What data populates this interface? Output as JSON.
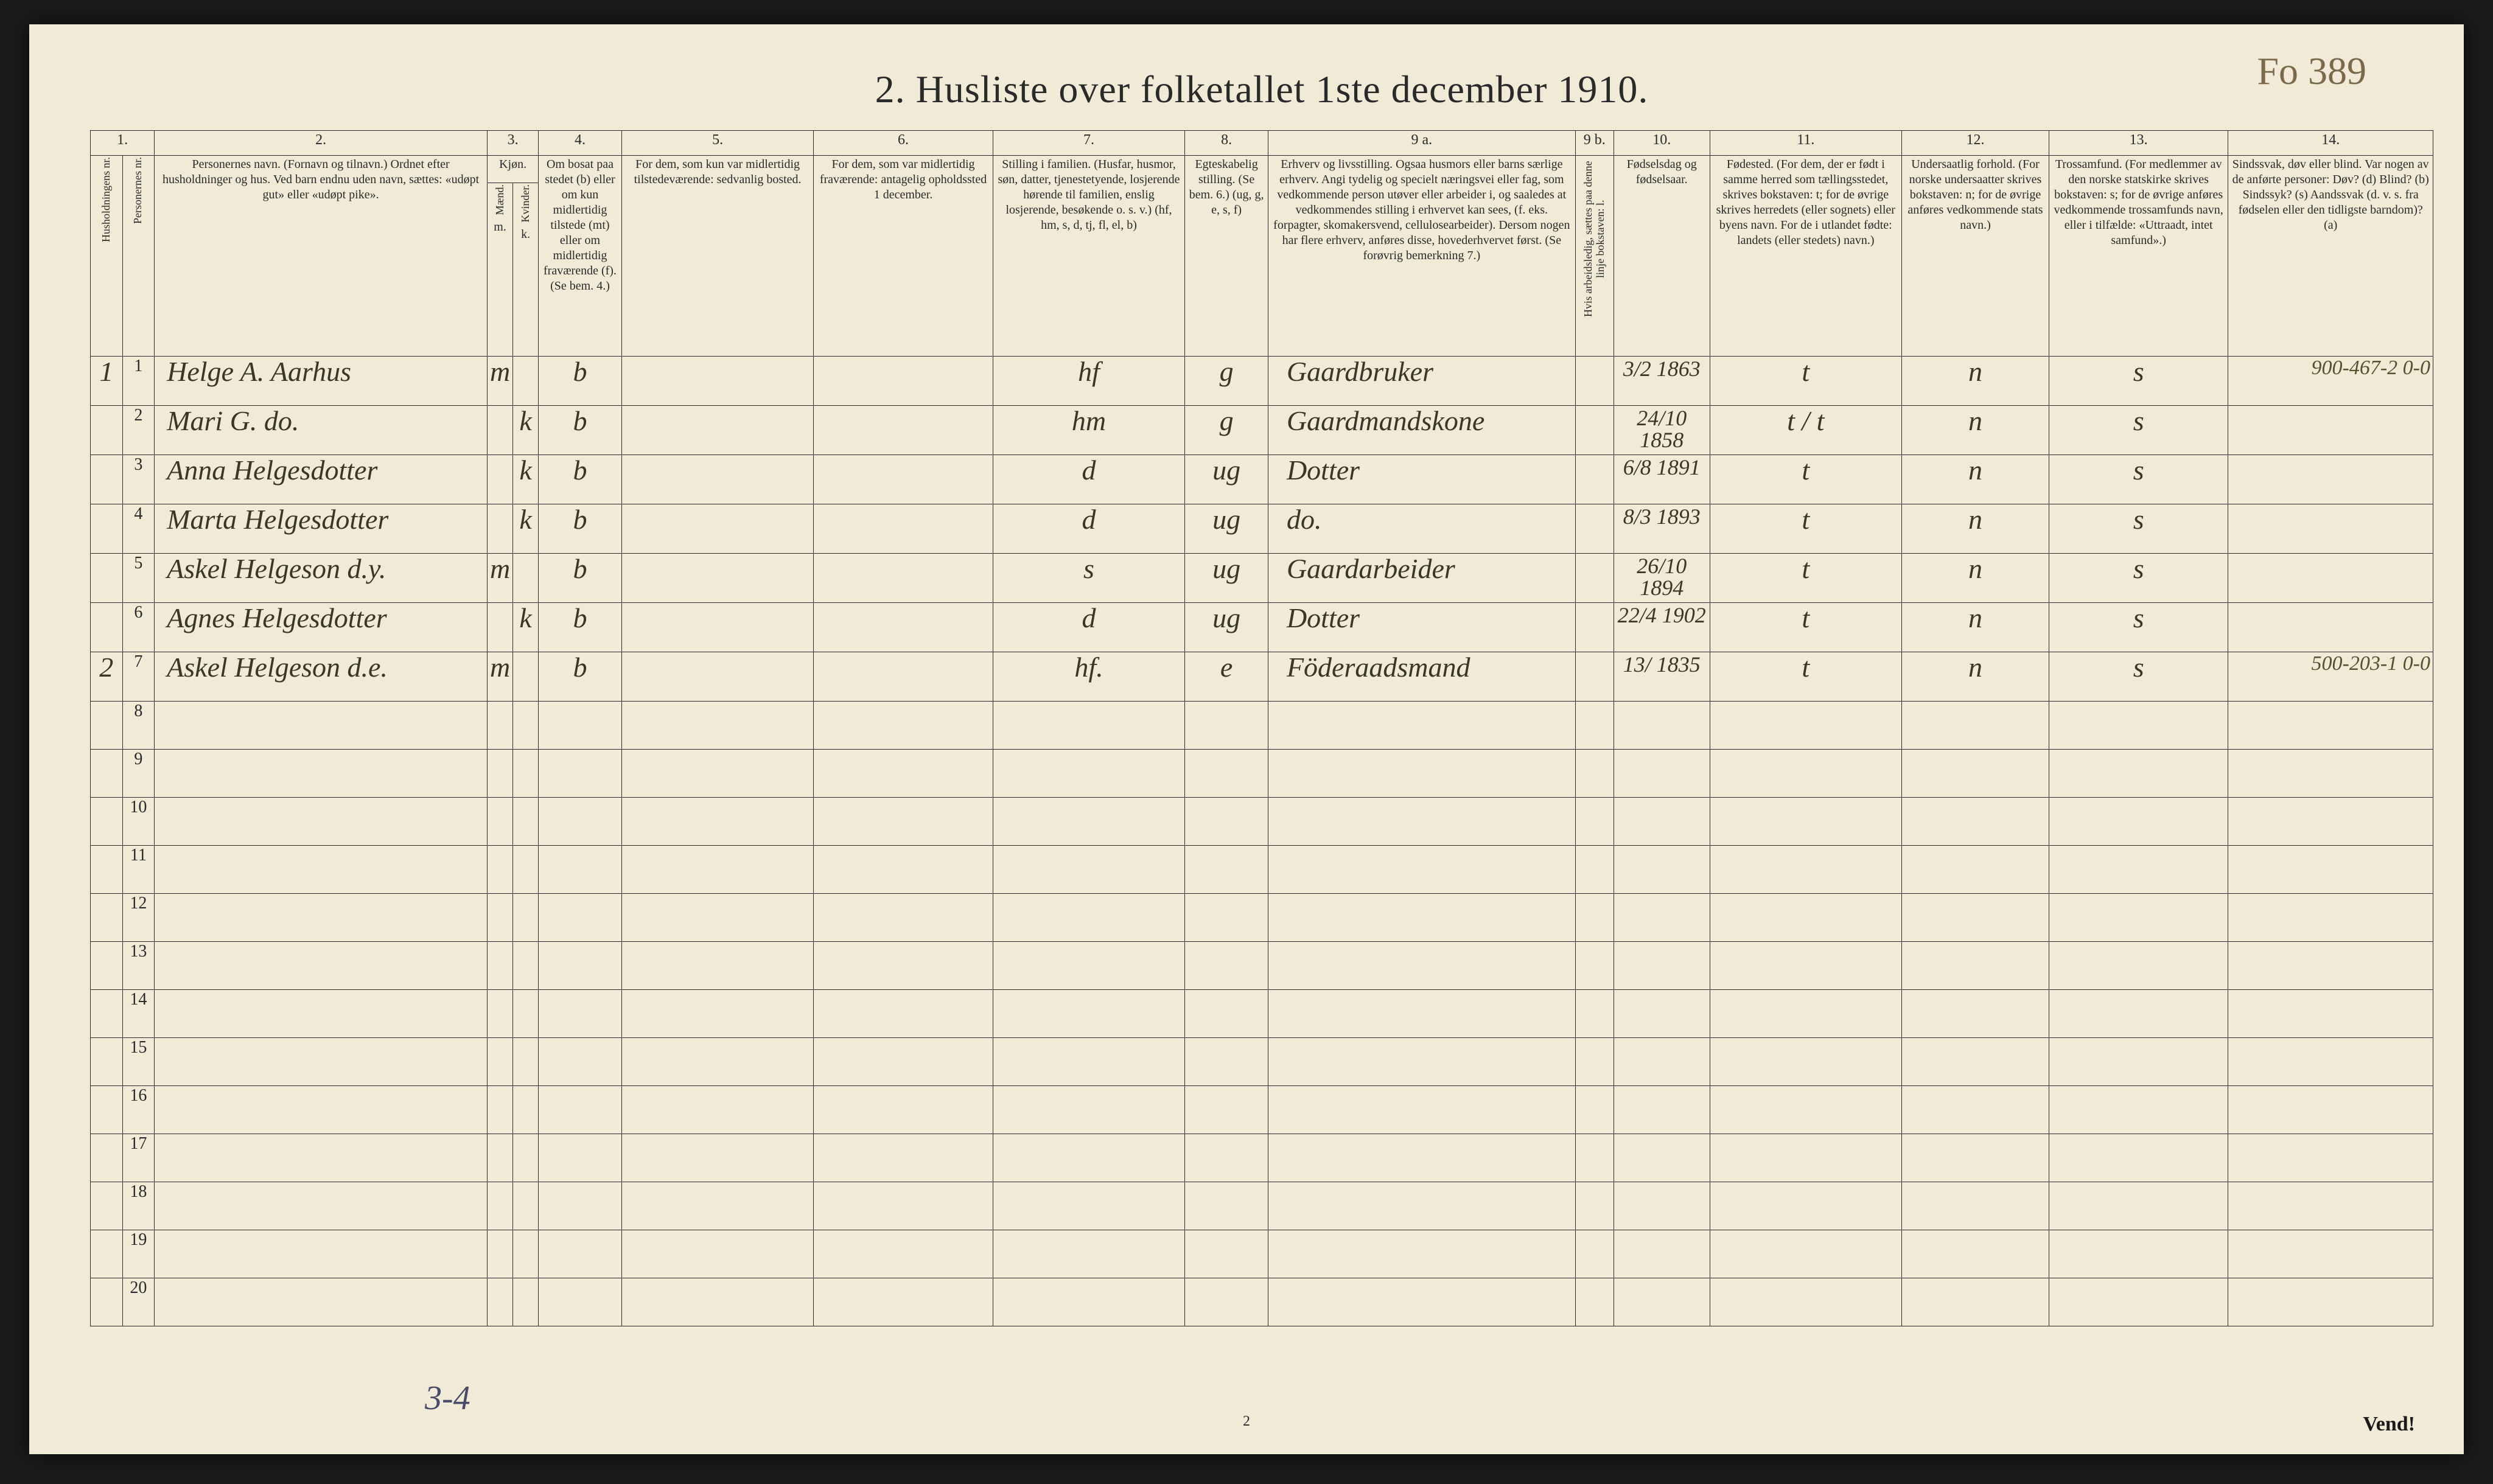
{
  "page": {
    "title": "2.  Husliste over folketallet 1ste december 1910.",
    "top_annotation": "Fo 389",
    "footer_left": "3-4",
    "footer_center": "2",
    "footer_right": "Vend!",
    "background_color": "#f0ead6",
    "border_color": "#2a2a2a",
    "handwriting_color": "#3a3628"
  },
  "columns": {
    "nums": [
      "1.",
      "2.",
      "3.",
      "4.",
      "5.",
      "6.",
      "7.",
      "8.",
      "9 a.",
      "9 b.",
      "10.",
      "11.",
      "12.",
      "13.",
      "14."
    ],
    "c1a": "Husholdningens nr.",
    "c1b": "Personernes nr.",
    "c2": "Personernes navn.\n(Fornavn og tilnavn.)\nOrdnet efter husholdninger og hus.\nVed barn endnu uden navn, sættes: «udøpt gut» eller «udøpt pike».",
    "c3": "Kjøn.",
    "c3a": "Mænd.",
    "c3b": "Kvinder.",
    "c3mk": "m.    k.",
    "c4": "Om bosat paa stedet (b) eller om kun midlertidig tilstede (mt) eller om midlertidig fraværende (f). (Se bem. 4.)",
    "c5": "For dem, som kun var midlertidig tilstedeværende:\nsedvanlig bosted.",
    "c6": "For dem, som var midlertidig fraværende:\nantagelig opholdssted 1 december.",
    "c7": "Stilling i familien.\n(Husfar, husmor, søn, datter, tjenestetyende, losjerende hørende til familien, enslig losjerende, besøkende o. s. v.)\n(hf, hm, s, d, tj, fl, el, b)",
    "c8": "Egteskabelig stilling.\n(Se bem. 6.)\n(ug, g, e, s, f)",
    "c9a": "Erhverv og livsstilling.\nOgsaa husmors eller barns særlige erhverv.\nAngi tydelig og specielt næringsvei eller fag, som vedkommende person utøver eller arbeider i, og saaledes at vedkommendes stilling i erhvervet kan sees, (f. eks. forpagter, skomakersvend, cellulosearbeider). Dersom nogen har flere erhverv, anføres disse, hovederhvervet først.\n(Se forøvrig bemerkning 7.)",
    "c9b": "Hvis arbeidsledig, sættes paa denne linje bokstaven: l.",
    "c10": "Fødselsdag og fødselsaar.",
    "c11": "Fødested.\n(For dem, der er født i samme herred som tællingsstedet, skrives bokstaven: t; for de øvrige skrives herredets (eller sognets) eller byens navn. For de i utlandet fødte: landets (eller stedets) navn.)",
    "c12": "Undersaatlig forhold.\n(For norske undersaatter skrives bokstaven: n; for de øvrige anføres vedkommende stats navn.)",
    "c13": "Trossamfund.\n(For medlemmer av den norske statskirke skrives bokstaven: s; for de øvrige anføres vedkommende trossamfunds navn, eller i tilfælde: «Uttraadt, intet samfund».)",
    "c14": "Sindssvak, døv eller blind.\nVar nogen av de anførte personer:\nDøv? (d)\nBlind? (b)\nSindssyk? (s)\nAandssvak (d. v. s. fra fødselen eller den tidligste barndom)? (a)"
  },
  "rows": [
    {
      "hh": "1",
      "pn": "1",
      "name": "Helge A. Aarhus",
      "m": "m",
      "k": "",
      "b": "b",
      "c5": "",
      "c6": "",
      "c7": "hf",
      "c8": "g",
      "c9a": "Gaardbruker",
      "c9b": "",
      "c10": "3/2 1863",
      "c11": "t",
      "c12": "n",
      "c13": "s",
      "c14": "900-467-2  0-0"
    },
    {
      "hh": "",
      "pn": "2",
      "name": "Mari G.   do.",
      "m": "",
      "k": "k",
      "b": "b",
      "c5": "",
      "c6": "",
      "c7": "hm",
      "c8": "g",
      "c9a": "Gaardmandskone",
      "c9b": "",
      "c10": "24/10 1858",
      "c11": "t / t",
      "c12": "n",
      "c13": "s",
      "c14": ""
    },
    {
      "hh": "",
      "pn": "3",
      "name": "Anna Helgesdotter",
      "m": "",
      "k": "k",
      "b": "b",
      "c5": "",
      "c6": "",
      "c7": "d",
      "c8": "ug",
      "c9a": "Dotter",
      "c9b": "",
      "c10": "6/8 1891",
      "c11": "t",
      "c12": "n",
      "c13": "s",
      "c14": ""
    },
    {
      "hh": "",
      "pn": "4",
      "name": "Marta Helgesdotter",
      "m": "",
      "k": "k",
      "b": "b",
      "c5": "",
      "c6": "",
      "c7": "d",
      "c8": "ug",
      "c9a": "do.",
      "c9b": "",
      "c10": "8/3 1893",
      "c11": "t",
      "c12": "n",
      "c13": "s",
      "c14": ""
    },
    {
      "hh": "",
      "pn": "5",
      "name": "Askel Helgeson d.y.",
      "m": "m",
      "k": "",
      "b": "b",
      "c5": "",
      "c6": "",
      "c7": "s",
      "c8": "ug",
      "c9a": "Gaardarbeider",
      "c9b": "",
      "c10": "26/10 1894",
      "c11": "t",
      "c12": "n",
      "c13": "s",
      "c14": ""
    },
    {
      "hh": "",
      "pn": "6",
      "name": "Agnes Helgesdotter",
      "m": "",
      "k": "k",
      "b": "b",
      "c5": "",
      "c6": "",
      "c7": "d",
      "c8": "ug",
      "c9a": "Dotter",
      "c9b": "",
      "c10": "22/4 1902",
      "c11": "t",
      "c12": "n",
      "c13": "s",
      "c14": ""
    },
    {
      "hh": "2",
      "pn": "7",
      "name": "Askel Helgeson d.e.",
      "m": "m",
      "k": "",
      "b": "b",
      "c5": "",
      "c6": "",
      "c7": "hf.",
      "c8": "e",
      "c9a": "Föderaadsmand",
      "c9b": "",
      "c10": "13/ 1835",
      "c11": "t",
      "c12": "n",
      "c13": "s",
      "c14": "500-203-1  0-0"
    }
  ],
  "num_rows_printed": 20,
  "widths": {
    "c1a": 50,
    "c1b": 50,
    "c2": 520,
    "c3a": 40,
    "c3b": 40,
    "c4": 130,
    "c5": 300,
    "c6": 280,
    "c7": 300,
    "c8": 130,
    "c9a": 480,
    "c9b": 60,
    "c10": 150,
    "c11": 300,
    "c12": 230,
    "c13": 280,
    "c14": 320
  }
}
